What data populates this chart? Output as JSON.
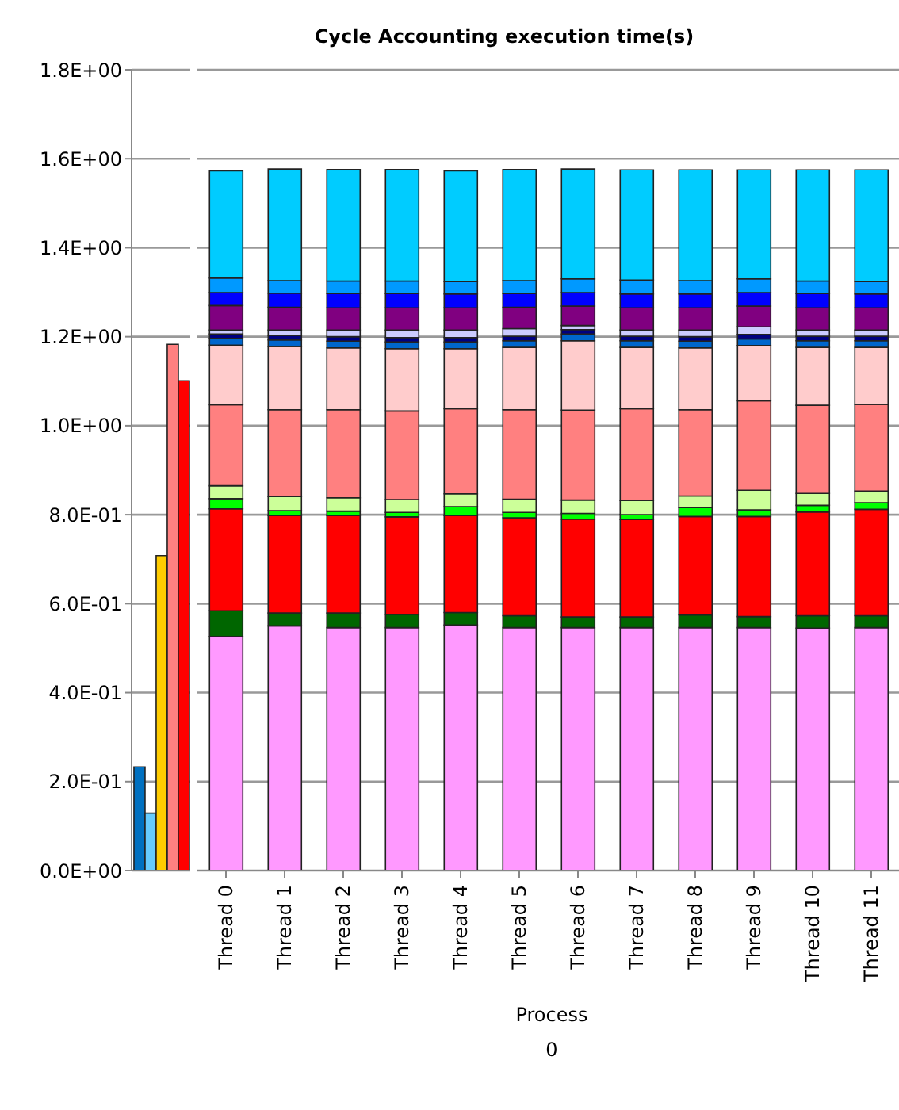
{
  "chart_data": [
    {
      "type": "bar",
      "categories": [
        null
      ],
      "ylim": [
        0,
        1.8
      ],
      "yticks": [
        {
          "value": 0,
          "label": "0.0E+00"
        },
        {
          "value": 0.2,
          "label": "2.0E-01"
        },
        {
          "value": 0.4,
          "label": "4.0E-01"
        },
        {
          "value": 0.6,
          "label": "6.0E-01"
        },
        {
          "value": 0.8,
          "label": "8.0E-01"
        },
        {
          "value": 1.0,
          "label": "1.0E+00"
        },
        {
          "value": 1.2,
          "label": "1.2E+00"
        },
        {
          "value": 1.4,
          "label": "1.4E+00"
        },
        {
          "value": 1.6,
          "label": "1.6E+00"
        },
        {
          "value": 1.8,
          "label": "1.8E+00"
        }
      ],
      "grid": "y",
      "tick_labels": "y",
      "series": [
        {
          "color": "#0070c0",
          "values": [
            0.233
          ]
        },
        {
          "color": "#66ccff",
          "values": [
            0.129
          ]
        },
        {
          "color": "#ffcc00",
          "values": [
            0.708
          ]
        },
        {
          "color": "#ff8080",
          "values": [
            1.183
          ]
        },
        {
          "color": "#ff0000",
          "values": [
            1.101
          ]
        }
      ]
    },
    {
      "type": "bar",
      "title": "Cycle Accounting execution time(s)",
      "stacked": true,
      "categories": [
        "Thread 0",
        "Thread 1",
        "Thread 2",
        "Thread 3",
        "Thread 4",
        "Thread 5",
        "Thread 6",
        "Thread 7",
        "Thread 8",
        "Thread 9",
        "Thread 10",
        "Thread 11"
      ],
      "ylim": [
        0,
        1.8
      ],
      "yticks": [
        {
          "value": 0,
          "label": null
        },
        {
          "value": 0.2,
          "label": null
        },
        {
          "value": 0.4,
          "label": null
        },
        {
          "value": 0.6,
          "label": null
        },
        {
          "value": 0.8,
          "label": null
        },
        {
          "value": 1.0,
          "label": null
        },
        {
          "value": 1.2,
          "label": null
        },
        {
          "value": 1.4,
          "label": null
        },
        {
          "value": 1.6,
          "label": null
        },
        {
          "value": 1.8,
          "label": null
        }
      ],
      "grid": "y",
      "tick_labels": "x",
      "annotations": [
        "Process",
        "0"
      ],
      "series": [
        {
          "color": "#ff99ff",
          "values": [
            0.526,
            0.55,
            0.546,
            0.546,
            0.552,
            0.546,
            0.546,
            0.546,
            0.546,
            0.546,
            0.545,
            0.546
          ]
        },
        {
          "color": "#006600",
          "values": [
            0.058,
            0.029,
            0.033,
            0.03,
            0.028,
            0.027,
            0.024,
            0.024,
            0.029,
            0.025,
            0.028,
            0.027
          ]
        },
        {
          "color": "#ff0000",
          "values": [
            0.229,
            0.219,
            0.219,
            0.219,
            0.218,
            0.22,
            0.22,
            0.219,
            0.221,
            0.225,
            0.233,
            0.239
          ]
        },
        {
          "color": "#00ff00",
          "values": [
            0.023,
            0.011,
            0.01,
            0.01,
            0.02,
            0.012,
            0.013,
            0.011,
            0.02,
            0.015,
            0.015,
            0.015
          ]
        },
        {
          "color": "#ccff99",
          "values": [
            0.029,
            0.032,
            0.03,
            0.029,
            0.029,
            0.03,
            0.03,
            0.032,
            0.026,
            0.044,
            0.027,
            0.026
          ]
        },
        {
          "color": "#ff8080",
          "values": [
            0.182,
            0.195,
            0.198,
            0.199,
            0.191,
            0.201,
            0.202,
            0.206,
            0.194,
            0.201,
            0.198,
            0.195
          ]
        },
        {
          "color": "#ffcccc",
          "values": [
            0.134,
            0.142,
            0.139,
            0.14,
            0.135,
            0.14,
            0.156,
            0.138,
            0.139,
            0.124,
            0.13,
            0.128
          ]
        },
        {
          "color": "#0066cc",
          "values": [
            0.015,
            0.015,
            0.015,
            0.015,
            0.015,
            0.015,
            0.015,
            0.015,
            0.015,
            0.015,
            0.015,
            0.015
          ]
        },
        {
          "color": "#000080",
          "values": [
            0.01,
            0.01,
            0.01,
            0.01,
            0.01,
            0.01,
            0.01,
            0.01,
            0.01,
            0.01,
            0.01,
            0.01
          ]
        },
        {
          "color": "#ccccff",
          "values": [
            0.009,
            0.012,
            0.015,
            0.017,
            0.017,
            0.017,
            0.009,
            0.014,
            0.015,
            0.017,
            0.014,
            0.014
          ]
        },
        {
          "color": "#800080",
          "values": [
            0.055,
            0.051,
            0.05,
            0.05,
            0.05,
            0.048,
            0.044,
            0.05,
            0.05,
            0.047,
            0.05,
            0.05
          ]
        },
        {
          "color": "#0000ff",
          "values": [
            0.029,
            0.032,
            0.032,
            0.032,
            0.031,
            0.031,
            0.03,
            0.031,
            0.031,
            0.03,
            0.032,
            0.031
          ]
        },
        {
          "color": "#0099ff",
          "values": [
            0.033,
            0.028,
            0.028,
            0.028,
            0.028,
            0.029,
            0.031,
            0.031,
            0.03,
            0.031,
            0.028,
            0.028
          ]
        },
        {
          "color": "#00ccff",
          "values": [
            0.241,
            0.251,
            0.251,
            0.251,
            0.249,
            0.25,
            0.247,
            0.248,
            0.249,
            0.245,
            0.25,
            0.251
          ]
        }
      ]
    }
  ]
}
